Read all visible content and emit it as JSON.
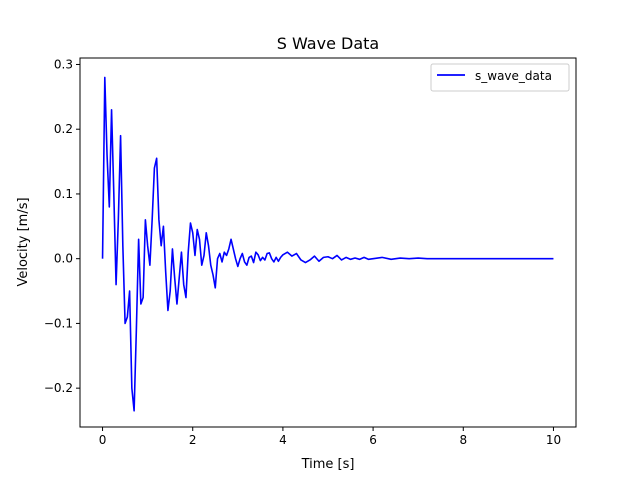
{
  "chart_data": {
    "type": "line",
    "title": "S Wave Data",
    "xlabel": "Time [s]",
    "ylabel": "Velocity [m/s]",
    "xlim": [
      -0.5,
      10.5
    ],
    "ylim": [
      -0.26,
      0.31
    ],
    "x_ticks": [
      0,
      2,
      4,
      6,
      8,
      10
    ],
    "x_tick_labels": [
      "0",
      "2",
      "4",
      "6",
      "8",
      "10"
    ],
    "y_ticks": [
      -0.2,
      -0.1,
      0.0,
      0.1,
      0.2,
      0.3
    ],
    "y_tick_labels": [
      "−0.2",
      "−0.1",
      "0.0",
      "0.1",
      "0.2",
      "0.3"
    ],
    "grid": false,
    "legend_position": "upper right",
    "series": [
      {
        "name": "s_wave_data",
        "color": "#0000ff",
        "x": [
          0,
          0.05,
          0.1,
          0.15,
          0.2,
          0.25,
          0.3,
          0.35,
          0.4,
          0.45,
          0.5,
          0.55,
          0.6,
          0.65,
          0.7,
          0.75,
          0.8,
          0.85,
          0.9,
          0.95,
          1.0,
          1.05,
          1.1,
          1.15,
          1.2,
          1.25,
          1.3,
          1.35,
          1.4,
          1.45,
          1.5,
          1.55,
          1.6,
          1.65,
          1.7,
          1.75,
          1.8,
          1.85,
          1.9,
          1.95,
          2.0,
          2.05,
          2.1,
          2.15,
          2.2,
          2.25,
          2.3,
          2.35,
          2.4,
          2.45,
          2.5,
          2.55,
          2.6,
          2.65,
          2.7,
          2.75,
          2.8,
          2.85,
          2.9,
          2.95,
          3.0,
          3.05,
          3.1,
          3.15,
          3.2,
          3.25,
          3.3,
          3.35,
          3.4,
          3.45,
          3.5,
          3.55,
          3.6,
          3.65,
          3.7,
          3.75,
          3.8,
          3.85,
          3.9,
          3.95,
          4.0,
          4.1,
          4.2,
          4.3,
          4.4,
          4.5,
          4.6,
          4.7,
          4.8,
          4.9,
          5.0,
          5.1,
          5.2,
          5.3,
          5.4,
          5.5,
          5.6,
          5.7,
          5.8,
          5.9,
          6.0,
          6.2,
          6.4,
          6.6,
          6.8,
          7.0,
          7.2,
          7.4,
          7.6,
          7.8,
          8.0,
          8.5,
          9.0,
          9.5,
          10.0
        ],
        "y": [
          0.0,
          0.28,
          0.16,
          0.08,
          0.23,
          0.1,
          -0.04,
          0.06,
          0.19,
          0.02,
          -0.1,
          -0.09,
          -0.05,
          -0.2,
          -0.235,
          -0.11,
          0.03,
          -0.07,
          -0.06,
          0.06,
          0.02,
          -0.01,
          0.06,
          0.14,
          0.155,
          0.06,
          0.02,
          0.05,
          -0.02,
          -0.08,
          -0.05,
          0.015,
          -0.03,
          -0.07,
          -0.03,
          0.01,
          -0.04,
          -0.06,
          0.01,
          0.055,
          0.04,
          0.005,
          0.045,
          0.03,
          -0.01,
          0.005,
          0.04,
          0.02,
          -0.01,
          -0.025,
          -0.045,
          0.0,
          0.008,
          -0.005,
          0.01,
          0.005,
          0.015,
          0.03,
          0.015,
          0.0,
          -0.012,
          0.0,
          0.008,
          -0.005,
          -0.01,
          0.002,
          0.004,
          -0.006,
          0.01,
          0.006,
          -0.003,
          0.002,
          -0.002,
          0.008,
          0.009,
          0.0,
          -0.005,
          0.002,
          -0.004,
          0.002,
          0.006,
          0.01,
          0.004,
          0.008,
          -0.002,
          -0.006,
          -0.002,
          0.004,
          -0.004,
          0.002,
          0.003,
          0.0,
          0.005,
          -0.002,
          0.002,
          -0.001,
          0.001,
          -0.001,
          0.002,
          -0.001,
          0.0,
          0.002,
          -0.001,
          0.001,
          0.0,
          0.001,
          0.0,
          0.0,
          0.0,
          0.0,
          0.0,
          0.0,
          0.0,
          0.0,
          0.0
        ]
      }
    ]
  }
}
